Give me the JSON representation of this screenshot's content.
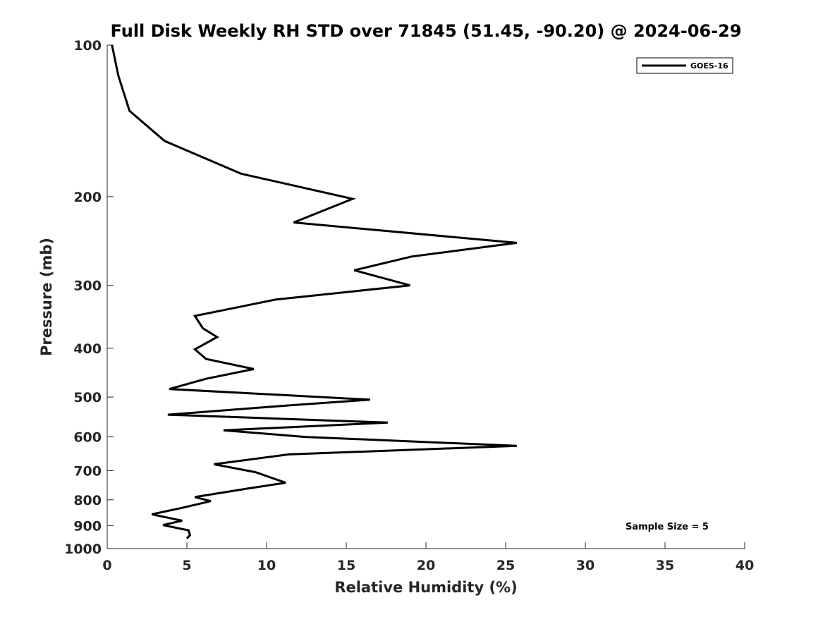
{
  "chart_data": {
    "type": "line",
    "title": "Full Disk Weekly RH STD over 71845 (51.45, -90.20) @ 2024-06-29",
    "xlabel": "Relative Humidity (%)",
    "ylabel": "Pressure (mb)",
    "xlim": [
      0,
      40
    ],
    "ylim": [
      100,
      1000
    ],
    "y_scale": "log",
    "y_reversed": true,
    "grid": false,
    "x_ticks": [
      0,
      5,
      10,
      15,
      20,
      25,
      30,
      35,
      40
    ],
    "y_ticks": [
      100,
      200,
      300,
      400,
      500,
      600,
      700,
      800,
      900,
      1000
    ],
    "legend": {
      "position": "top-right",
      "entries": [
        "GOES-16"
      ]
    },
    "annotation": "Sample Size = 5",
    "series": [
      {
        "name": "GOES-16",
        "color": "#000000",
        "points": [
          [
            0.3,
            100
          ],
          [
            0.7,
            115
          ],
          [
            1.4,
            135
          ],
          [
            3.6,
            155
          ],
          [
            8.4,
            180
          ],
          [
            15.4,
            202
          ],
          [
            11.7,
            225
          ],
          [
            25.7,
            247
          ],
          [
            19.1,
            263
          ],
          [
            15.5,
            280
          ],
          [
            19.0,
            300
          ],
          [
            10.6,
            320
          ],
          [
            5.5,
            345
          ],
          [
            6.0,
            365
          ],
          [
            6.9,
            380
          ],
          [
            5.5,
            402
          ],
          [
            6.2,
            420
          ],
          [
            9.2,
            440
          ],
          [
            6.2,
            460
          ],
          [
            3.9,
            482
          ],
          [
            16.5,
            506
          ],
          [
            11.2,
            520
          ],
          [
            3.8,
            542
          ],
          [
            17.6,
            562
          ],
          [
            7.3,
            582
          ],
          [
            12.4,
            600
          ],
          [
            25.7,
            625
          ],
          [
            11.4,
            650
          ],
          [
            6.7,
            680
          ],
          [
            9.3,
            705
          ],
          [
            11.2,
            740
          ],
          [
            8.8,
            760
          ],
          [
            5.5,
            790
          ],
          [
            6.5,
            805
          ],
          [
            4.7,
            830
          ],
          [
            2.8,
            855
          ],
          [
            4.7,
            880
          ],
          [
            3.5,
            898
          ],
          [
            5.1,
            920
          ],
          [
            5.2,
            940
          ],
          [
            5.0,
            955
          ]
        ]
      }
    ]
  }
}
